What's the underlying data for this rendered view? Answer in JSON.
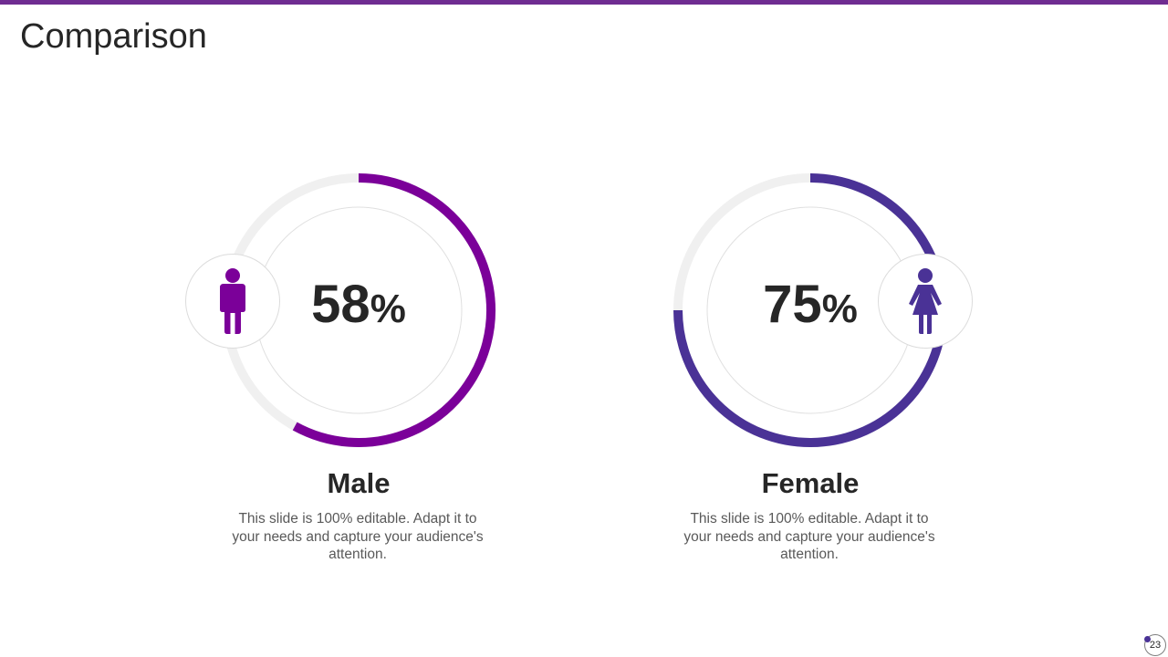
{
  "slide": {
    "title": "Comparison",
    "page_number": "23"
  },
  "colors": {
    "accent_bar": "#6f2c91",
    "male": "#7b0099",
    "female": "#4a3296",
    "track": "#f0f0f0",
    "inner_outline": "#e0e0e0"
  },
  "items": [
    {
      "key": "male",
      "label": "Male",
      "percent": 58,
      "percent_number": "58",
      "percent_symbol": "%",
      "icon": "male-person-icon",
      "description": "This slide is 100% editable. Adapt it to your needs and capture your audience's attention."
    },
    {
      "key": "female",
      "label": "Female",
      "percent": 75,
      "percent_number": "75",
      "percent_symbol": "%",
      "icon": "female-person-icon",
      "description": "This slide is 100% editable. Adapt it to your needs and capture your audience's attention."
    }
  ]
}
